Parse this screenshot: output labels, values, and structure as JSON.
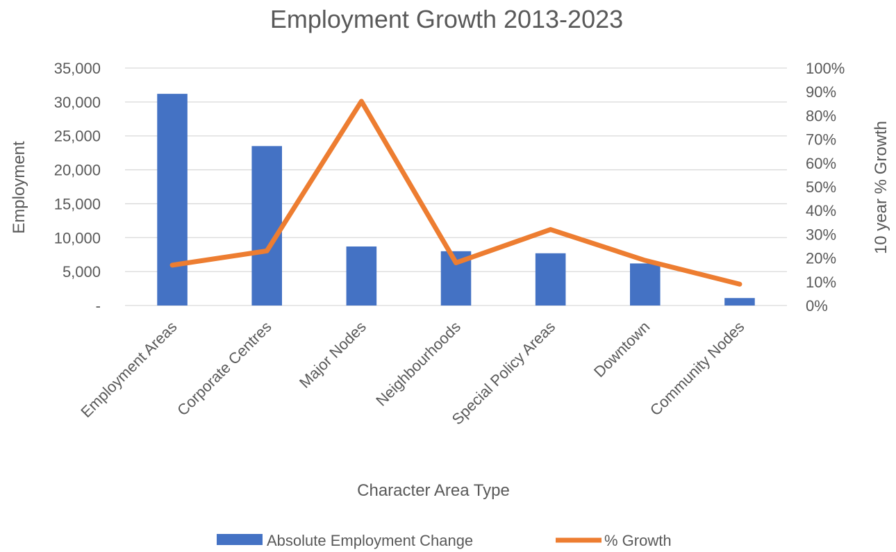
{
  "chart_data": {
    "type": "bar",
    "title": "Employment Growth 2013-2023",
    "xlabel": "Character Area Type",
    "ylabel": "Employment",
    "y2label": "10 year % Growth",
    "categories": [
      "Employment Areas",
      "Corporate Centres",
      "Major Nodes",
      "Neighbourhoods",
      "Special Policy Areas",
      "Downtown",
      "Community Nodes"
    ],
    "ylim": [
      0,
      35000
    ],
    "y_ticks": [
      0,
      5000,
      10000,
      15000,
      20000,
      25000,
      30000,
      35000
    ],
    "y_tick_labels": [
      "-",
      "5,000",
      "10,000",
      "15,000",
      "20,000",
      "25,000",
      "30,000",
      "35,000"
    ],
    "y2lim": [
      0,
      100
    ],
    "y2_ticks": [
      0,
      10,
      20,
      30,
      40,
      50,
      60,
      70,
      80,
      90,
      100
    ],
    "y2_tick_labels": [
      "0%",
      "10%",
      "20%",
      "30%",
      "40%",
      "50%",
      "60%",
      "70%",
      "80%",
      "90%",
      "100%"
    ],
    "grid": true,
    "legend_position": "bottom",
    "series": [
      {
        "name": "Absolute Employment Change",
        "type": "bar",
        "axis": "left",
        "color": "#4472c4",
        "values": [
          31200,
          23500,
          8700,
          8000,
          7700,
          6200,
          1100
        ]
      },
      {
        "name": "% Growth",
        "type": "line",
        "axis": "right",
        "color": "#ed7d31",
        "values": [
          17,
          23,
          86,
          18,
          32,
          19,
          9
        ]
      }
    ]
  }
}
